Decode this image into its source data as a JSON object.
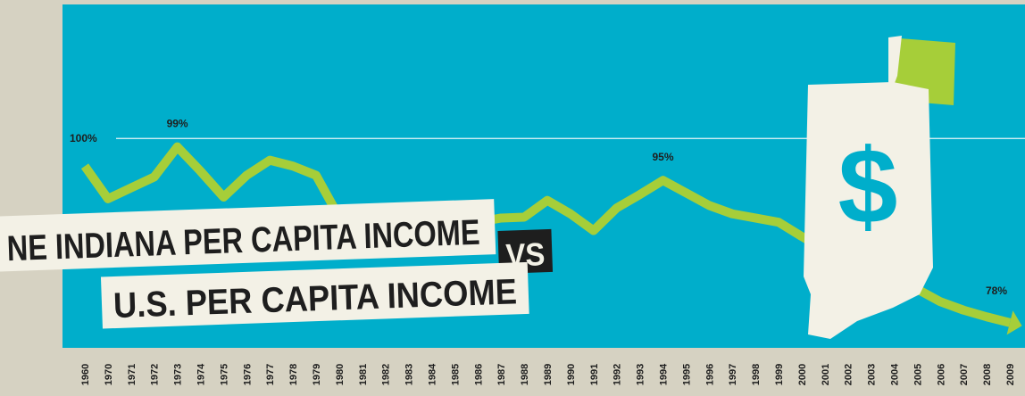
{
  "chart_data": {
    "type": "line",
    "title": "NE INDIANA PER CAPITA INCOME",
    "title_connector": "VS",
    "subtitle": "U.S. PER CAPITA INCOME",
    "icon_text": "$",
    "categories": [
      "1960",
      "1970",
      "1971",
      "1972",
      "1973",
      "1974",
      "1975",
      "1976",
      "1977",
      "1978",
      "1979",
      "1980",
      "1981",
      "1982",
      "1983",
      "1984",
      "1985",
      "1986",
      "1987",
      "1988",
      "1989",
      "1990",
      "1991",
      "1992",
      "1993",
      "1994",
      "1995",
      "1996",
      "1997",
      "1998",
      "1999",
      "2000",
      "2001",
      "2002",
      "2003",
      "2004",
      "2005",
      "2006",
      "2007",
      "2008",
      "2009"
    ],
    "series": [
      {
        "color": "#a6ce39",
        "values": [
          96.7,
          92.8,
          94.1,
          95.4,
          99,
          96.1,
          93,
          95.6,
          97.4,
          96.7,
          95.6,
          90.6,
          88,
          87,
          87.5,
          88.5,
          89.5,
          90,
          90.5,
          90.6,
          92.6,
          91,
          89,
          91.7,
          93.3,
          95,
          93.5,
          92,
          91,
          90.5,
          90,
          88.3,
          86.7,
          85.5,
          84.5,
          83.9,
          82,
          80.5,
          79.5,
          78.7,
          78
        ],
        "value_labels": [
          null,
          null,
          null,
          null,
          "99%",
          null,
          null,
          null,
          null,
          null,
          null,
          null,
          null,
          null,
          null,
          null,
          null,
          null,
          null,
          null,
          null,
          null,
          null,
          null,
          null,
          "95%",
          null,
          null,
          null,
          null,
          null,
          null,
          null,
          null,
          null,
          null,
          null,
          null,
          null,
          null,
          "78%"
        ]
      }
    ],
    "reference_line": {
      "value": 100,
      "label": "100%"
    },
    "ylim": [
      75,
      116
    ]
  }
}
